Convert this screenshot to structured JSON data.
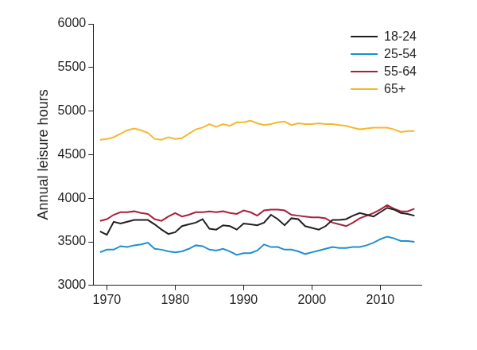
{
  "chart_data": {
    "type": "line",
    "y_label": "Annual leisure hours",
    "x": [
      1969,
      1970,
      1971,
      1972,
      1973,
      1974,
      1975,
      1976,
      1977,
      1978,
      1979,
      1980,
      1981,
      1982,
      1983,
      1984,
      1985,
      1986,
      1987,
      1988,
      1989,
      1990,
      1991,
      1992,
      1993,
      1994,
      1995,
      1996,
      1997,
      1998,
      1999,
      2000,
      2001,
      2002,
      2003,
      2004,
      2005,
      2006,
      2007,
      2008,
      2009,
      2010,
      2011,
      2012,
      2013,
      2014,
      2015
    ],
    "series": [
      {
        "name": "18-24",
        "color": "#231f20",
        "values": [
          3620,
          3580,
          3730,
          3710,
          3730,
          3750,
          3750,
          3750,
          3700,
          3640,
          3590,
          3610,
          3680,
          3700,
          3720,
          3760,
          3650,
          3640,
          3690,
          3680,
          3640,
          3710,
          3700,
          3690,
          3720,
          3810,
          3760,
          3690,
          3770,
          3760,
          3680,
          3660,
          3640,
          3680,
          3750,
          3750,
          3760,
          3800,
          3830,
          3810,
          3790,
          3840,
          3890,
          3870,
          3830,
          3820,
          3800
        ]
      },
      {
        "name": "25-54",
        "color": "#1f8fce",
        "values": [
          3380,
          3410,
          3410,
          3450,
          3440,
          3460,
          3470,
          3490,
          3420,
          3410,
          3390,
          3380,
          3390,
          3420,
          3460,
          3450,
          3410,
          3400,
          3420,
          3390,
          3350,
          3370,
          3370,
          3400,
          3470,
          3440,
          3440,
          3410,
          3410,
          3390,
          3360,
          3380,
          3400,
          3420,
          3440,
          3430,
          3430,
          3440,
          3440,
          3460,
          3490,
          3530,
          3560,
          3540,
          3510,
          3510,
          3500
        ]
      },
      {
        "name": "55-64",
        "color": "#a8203a",
        "values": [
          3740,
          3760,
          3810,
          3840,
          3840,
          3850,
          3830,
          3820,
          3760,
          3740,
          3790,
          3830,
          3790,
          3810,
          3840,
          3840,
          3850,
          3840,
          3850,
          3830,
          3820,
          3860,
          3840,
          3800,
          3860,
          3870,
          3870,
          3860,
          3810,
          3800,
          3790,
          3780,
          3780,
          3770,
          3720,
          3700,
          3680,
          3720,
          3770,
          3800,
          3830,
          3870,
          3920,
          3880,
          3850,
          3850,
          3880
        ]
      },
      {
        "name": "65+",
        "color": "#f5b82e",
        "values": [
          4670,
          4680,
          4700,
          4740,
          4780,
          4800,
          4780,
          4750,
          4680,
          4670,
          4700,
          4680,
          4690,
          4740,
          4790,
          4810,
          4850,
          4820,
          4850,
          4830,
          4870,
          4870,
          4890,
          4860,
          4840,
          4850,
          4870,
          4880,
          4840,
          4860,
          4850,
          4850,
          4860,
          4850,
          4850,
          4840,
          4830,
          4810,
          4790,
          4800,
          4810,
          4810,
          4810,
          4790,
          4760,
          4770,
          4770
        ]
      }
    ],
    "xlim": [
      1968,
      2016
    ],
    "xticks": [
      1970,
      1980,
      1990,
      2000,
      2010
    ],
    "ylim": [
      3000,
      6000
    ],
    "yticks": [
      3000,
      3500,
      4000,
      4500,
      5000,
      5500,
      6000
    ],
    "grid": false,
    "legend": "upper right"
  }
}
